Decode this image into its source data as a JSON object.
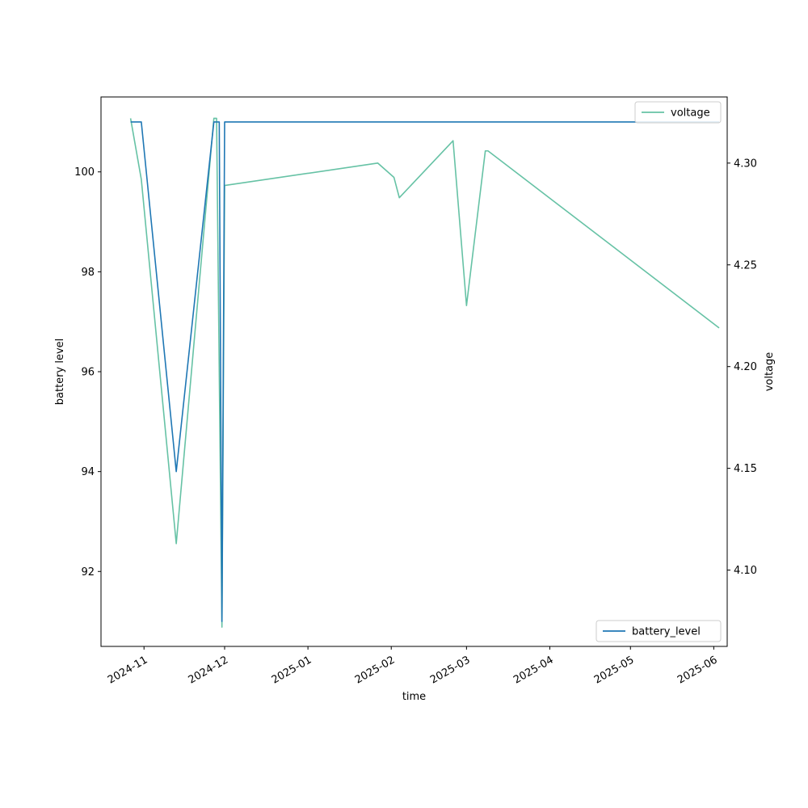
{
  "chart_data": {
    "type": "line",
    "xlabel": "time",
    "ylabel_left": "battery level",
    "ylabel_right": "voltage",
    "x_ticks": [
      "2024-11",
      "2024-12",
      "2025-01",
      "2025-02",
      "2025-03",
      "2025-04",
      "2025-05",
      "2025-06"
    ],
    "x_range": [
      "2024-10-16",
      "2025-06-06"
    ],
    "y_left_ticks": [
      92,
      94,
      96,
      98,
      100
    ],
    "y_left_range": [
      90.5,
      101.5
    ],
    "y_right_ticks": [
      4.1,
      4.15,
      4.2,
      4.25,
      4.3
    ],
    "y_right_range": [
      4.0625,
      4.3325
    ],
    "grid": false,
    "series": [
      {
        "name": "battery_level",
        "axis": "left",
        "color": "#1f77b4",
        "legend_position": "lower-right",
        "points": [
          [
            "2024-10-27",
            101
          ],
          [
            "2024-10-31",
            101
          ],
          [
            "2024-11-13",
            94
          ],
          [
            "2024-11-27",
            101
          ],
          [
            "2024-11-29",
            101
          ],
          [
            "2024-11-30",
            91
          ],
          [
            "2024-12-01",
            101
          ],
          [
            "2025-01-30",
            101
          ],
          [
            "2025-02-25",
            101
          ],
          [
            "2025-06-03",
            101
          ]
        ]
      },
      {
        "name": "voltage",
        "axis": "right",
        "color": "#66c2a5",
        "legend_position": "upper-right",
        "points": [
          [
            "2024-10-27",
            4.322
          ],
          [
            "2024-10-31",
            4.292
          ],
          [
            "2024-11-13",
            4.113
          ],
          [
            "2024-11-27",
            4.322
          ],
          [
            "2024-11-28",
            4.322
          ],
          [
            "2024-11-30",
            4.072
          ],
          [
            "2024-12-01",
            4.289
          ],
          [
            "2025-01-27",
            4.3
          ],
          [
            "2025-02-02",
            4.293
          ],
          [
            "2025-02-04",
            4.283
          ],
          [
            "2025-02-24",
            4.311
          ],
          [
            "2025-03-01",
            4.23
          ],
          [
            "2025-03-08",
            4.306
          ],
          [
            "2025-03-09",
            4.306
          ],
          [
            "2025-06-03",
            4.219
          ]
        ]
      }
    ]
  }
}
